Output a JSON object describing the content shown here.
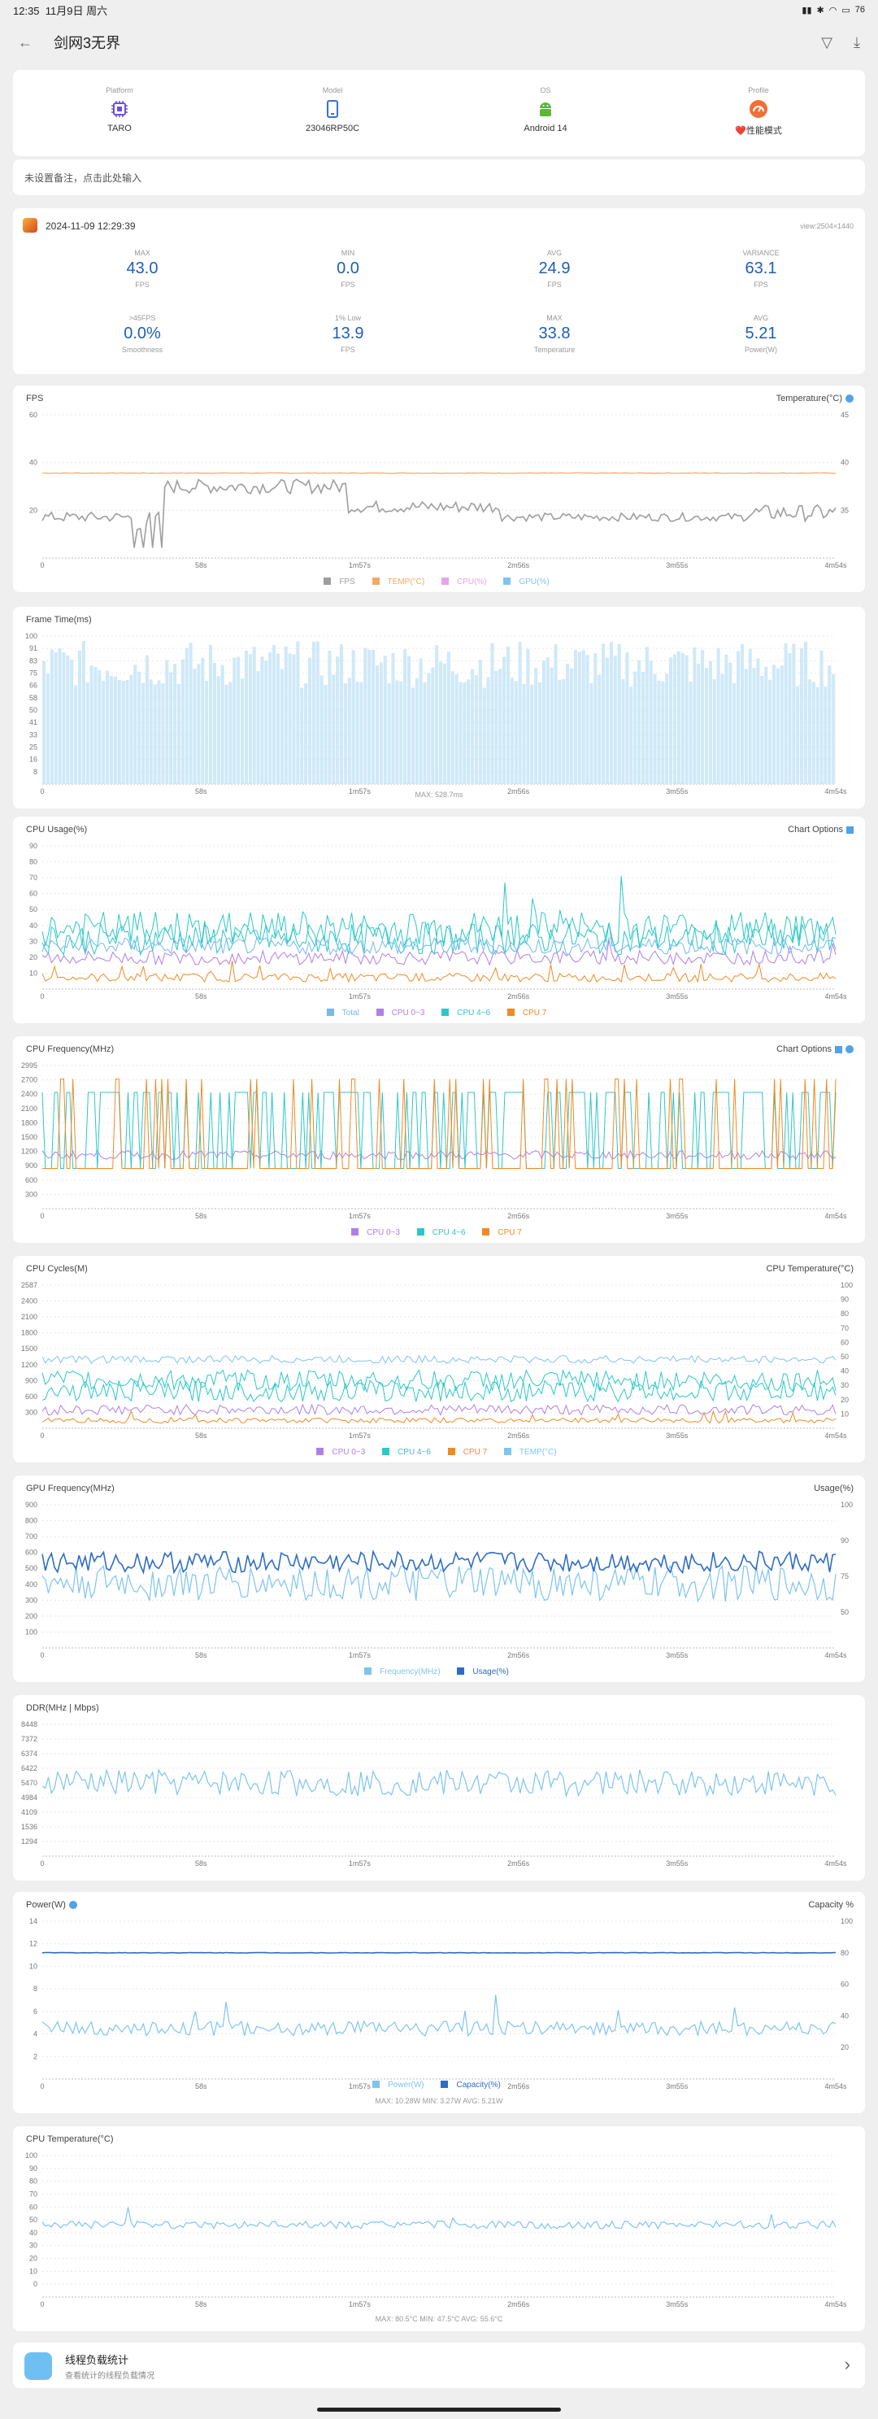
{
  "status_bar": {
    "time": "12:35",
    "date": "11月9日 周六",
    "battery": "76"
  },
  "header": {
    "title": "剑网3无界"
  },
  "device": [
    {
      "key": "Platform",
      "value": "TARO"
    },
    {
      "key": "Model",
      "value": "23046RP50C"
    },
    {
      "key": "OS",
      "value": "Android 14"
    },
    {
      "key": "Profile",
      "value": "❤️性能模式"
    }
  ],
  "note": {
    "text": "未设置备注，点击此处输入"
  },
  "session": {
    "datetime": "2024-11-09 12:29:39",
    "view": "view:2504×1440",
    "stats": [
      {
        "key": "MAX",
        "value": "43.0",
        "unit": "FPS"
      },
      {
        "key": "MIN",
        "value": "0.0",
        "unit": "FPS"
      },
      {
        "key": "AVG",
        "value": "24.9",
        "unit": "FPS"
      },
      {
        "key": "VARIANCE",
        "value": "63.1",
        "unit": "FPS"
      },
      {
        "key": ">45FPS",
        "value": "0.0%",
        "unit": "Smoothness"
      },
      {
        "key": "1% Low",
        "value": "13.9",
        "unit": "FPS"
      },
      {
        "key": "MAX",
        "value": "33.8",
        "unit": "Temperature"
      },
      {
        "key": "AVG",
        "value": "5.21",
        "unit": "Power(W)"
      }
    ]
  },
  "x_ticks": [
    "0",
    "58s",
    "1m57s",
    "2m56s",
    "3m55s",
    "4m54s"
  ],
  "panels": {
    "fps": {
      "title": "FPS",
      "right_title": "Temperature(°C)",
      "y_left": [
        "60",
        "40",
        "20"
      ],
      "y_right": [
        "45",
        "40",
        "35"
      ],
      "legend": [
        "FPS",
        "TEMP(°C)",
        "CPU(%)",
        "GPU(%)"
      ]
    },
    "frametime": {
      "title": "Frame Time(ms)",
      "y_left": [
        "100",
        "91",
        "83",
        "75",
        "66",
        "58",
        "50",
        "41",
        "33",
        "25",
        "16",
        "8"
      ],
      "footer": "MAX: 528.7ms"
    },
    "cpu_usage": {
      "title": "CPU Usage(%)",
      "right_title": "Chart Options",
      "y_left": [
        "90",
        "80",
        "70",
        "60",
        "50",
        "40",
        "30",
        "20",
        "10"
      ],
      "legend": [
        "Total",
        "CPU 0~3",
        "CPU 4~6",
        "CPU 7"
      ]
    },
    "cpu_freq": {
      "title": "CPU Frequency(MHz)",
      "right_title": "Chart Options",
      "y_left": [
        "2995",
        "2700",
        "2400",
        "2100",
        "1800",
        "1500",
        "1200",
        "900",
        "600",
        "300"
      ],
      "legend": [
        "CPU 0~3",
        "CPU 4~6",
        "CPU 7"
      ]
    },
    "cpu_cycles": {
      "title": "CPU Cycles(M)",
      "right_title": "CPU Temperature(°C)",
      "y_left": [
        "2587",
        "2400",
        "2100",
        "1800",
        "1500",
        "1200",
        "900",
        "600",
        "300"
      ],
      "y_right": [
        "100",
        "90",
        "80",
        "70",
        "60",
        "50",
        "40",
        "30",
        "20",
        "10"
      ],
      "legend": [
        "CPU 0~3",
        "CPU 4~6",
        "CPU 7",
        "TEMP(°C)"
      ]
    },
    "gpu_freq": {
      "title": "GPU Frequency(MHz)",
      "right_title": "Usage(%)",
      "y_left": [
        "900",
        "800",
        "700",
        "600",
        "500",
        "400",
        "300",
        "200",
        "100"
      ],
      "y_right": [
        "100",
        "90",
        "75",
        "50"
      ],
      "legend": [
        "Frequency(MHz)",
        "Usage(%)"
      ]
    },
    "ddr": {
      "title": "DDR(MHz | Mbps)",
      "y_left": [
        "8448",
        "7372",
        "6374",
        "6422",
        "5470",
        "4984",
        "4109",
        "1536",
        "1294"
      ]
    },
    "power": {
      "title": "Power(W)",
      "right_title": "Capacity %",
      "y_left": [
        "14",
        "12",
        "10",
        "8",
        "6",
        "4",
        "2"
      ],
      "y_right": [
        "100",
        "80",
        "60",
        "40",
        "20"
      ],
      "legend": [
        "Power(W)",
        "Capacity(%)"
      ],
      "footer": "MAX: 10.28W    MIN: 3.27W    AVG: 5.21W"
    },
    "cpu_temp": {
      "title": "CPU Temperature(°C)",
      "y_left": [
        "100",
        "90",
        "80",
        "70",
        "60",
        "50",
        "40",
        "30",
        "20",
        "10",
        "0"
      ],
      "footer": "MAX: 80.5°C    MIN: 47.5°C    AVG: 55.6°C"
    }
  },
  "thread": {
    "title": "线程负载统计",
    "subtitle": "查看统计的线程负载情况"
  },
  "colors": {
    "fps": "#9e9e9e",
    "temp": "#f6a860",
    "cpu": "#e6a5e6",
    "gpu": "#7fc4ef",
    "total": "#74b9ef",
    "cpu03": "#b07fe6",
    "cpu46": "#2cc7c7",
    "cpu7": "#f08a24",
    "blue": "#2f6dc4",
    "light": "#7fc4ef"
  }
}
